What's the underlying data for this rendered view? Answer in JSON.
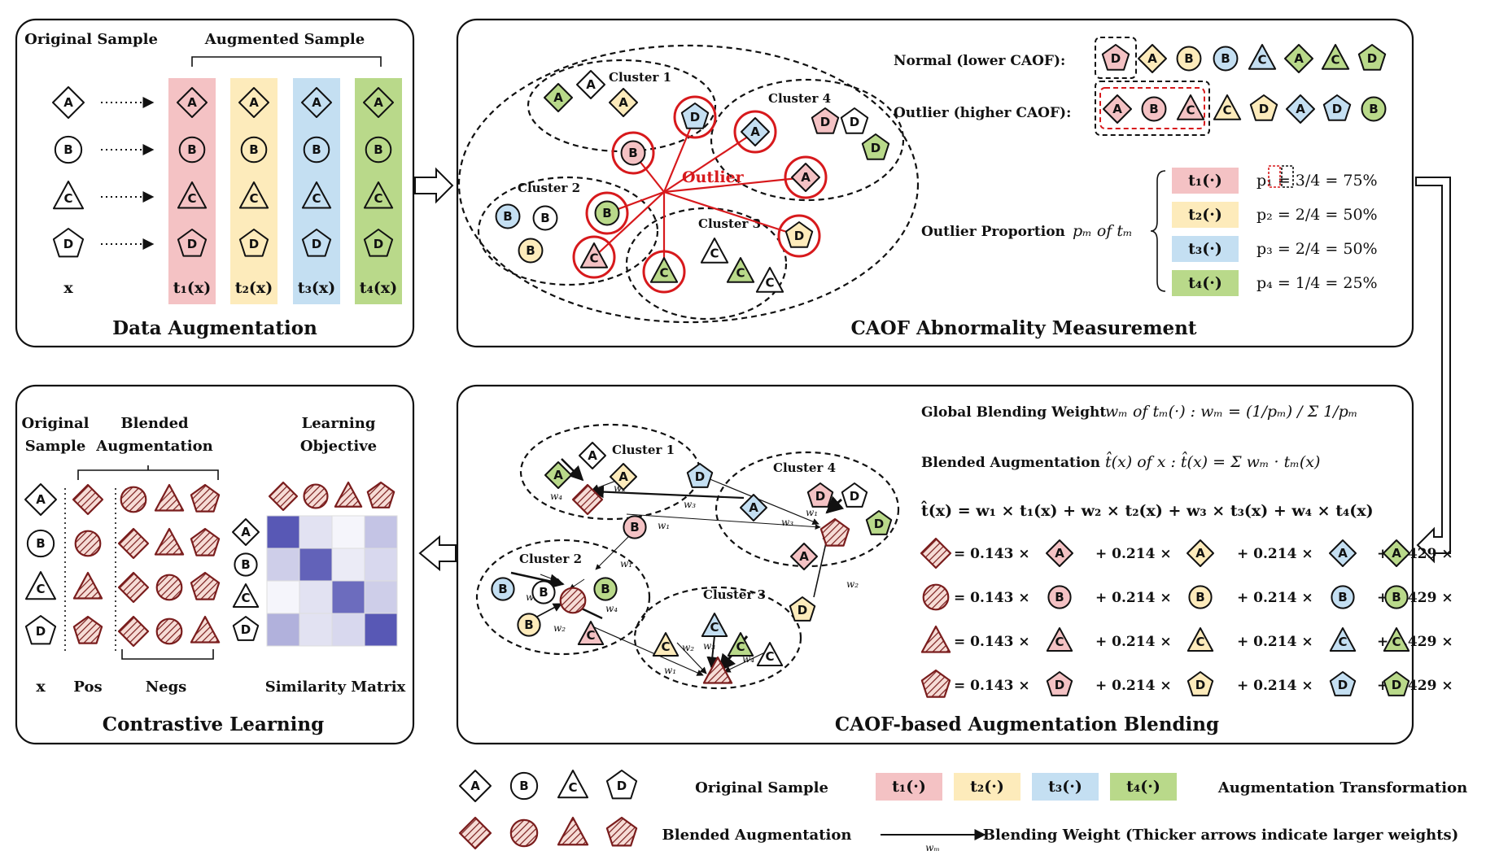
{
  "colors": {
    "t1": "#f4c2c4",
    "t2": "#fdebbb",
    "t3": "#c4dff2",
    "t4": "#b9d98a",
    "blend": "#7a1d1d",
    "outlier": "#d7191c",
    "matrix_dark": "#3b3ba8"
  },
  "panel1": {
    "title": "Data Augmentation",
    "original_label": "Original Sample",
    "augmented_label": "Augmented Sample",
    "x_label": "x",
    "t_labels": [
      "t₁(x)",
      "t₂(x)",
      "t₃(x)",
      "t₄(x)"
    ]
  },
  "panel2": {
    "title": "CAOF Abnormality Measurement",
    "clusters": [
      "Cluster 1",
      "Cluster 2",
      "Cluster 3",
      "Cluster 4"
    ],
    "outlier_label": "Outlier",
    "normal_label": "Normal (lower CAOF):",
    "outlier_row_label": "Outlier (higher CAOF):",
    "proportion_label": "Outlier Proportion",
    "proportion_math": "pₘ  of  tₘ",
    "t_tags": [
      "t₁(·)",
      "t₂(·)",
      "t₃(·)",
      "t₄(·)"
    ],
    "proportions": [
      "p₁ = 3/4 = 75%",
      "p₂ = 2/4 = 50%",
      "p₃ = 2/4 = 50%",
      "p₄ = 1/4 = 25%"
    ]
  },
  "panel3": {
    "title": "CAOF-based Augmentation Blending",
    "clusters": [
      "Cluster 1",
      "Cluster 2",
      "Cluster 3",
      "Cluster 4"
    ],
    "weight_line_label": "Global Blending Weight",
    "weight_line_math": "wₘ of  tₘ(·) :  wₘ = (1/pₘ) / Σ 1/pₘ",
    "blend_line_label": "Blended Augmentation",
    "blend_line_math": "t̂(x) of x :  t̂(x) = Σ wₘ · tₘ(x)",
    "expansion": "t̂(x) = w₁ × t₁(x) + w₂ × t₂(x) + w₃ × t₃(x) + w₄ × t₄(x)",
    "coefficients": [
      "= 0.143 ×",
      "+ 0.214 ×",
      "+ 0.214 ×",
      "+ 0.429 ×"
    ],
    "weights": [
      "w₁",
      "w₂",
      "w₃",
      "w₄"
    ]
  },
  "panel4": {
    "title": "Contrastive Learning",
    "original_label": [
      "Original",
      "Sample"
    ],
    "blended_label": [
      "Blended",
      "Augmentation"
    ],
    "objective_label": [
      "Learning",
      "Objective"
    ],
    "x_label": "x",
    "pos_label": "Pos",
    "negs_label": "Negs",
    "matrix_label": "Similarity Matrix",
    "similarity_matrix": [
      [
        0.85,
        0.15,
        0.05,
        0.3
      ],
      [
        0.25,
        0.8,
        0.1,
        0.2
      ],
      [
        0.05,
        0.15,
        0.75,
        0.25
      ],
      [
        0.4,
        0.15,
        0.2,
        0.85
      ]
    ]
  },
  "legend": {
    "original": "Original Sample",
    "transform": "Augmentation Transformation",
    "t_tags": [
      "t₁(·)",
      "t₂(·)",
      "t₃(·)",
      "t₄(·)"
    ],
    "blended": "Blended Augmentation",
    "arrow_weight": "wₘ",
    "arrow_desc": "Blending Weight (Thicker arrows indicate larger weights)"
  },
  "samples": [
    "A",
    "B",
    "C",
    "D"
  ]
}
